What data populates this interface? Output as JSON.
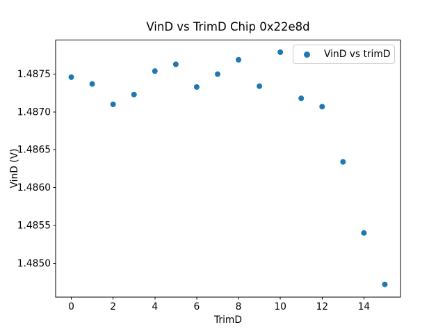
{
  "chart_data": {
    "type": "scatter",
    "title": "VinD vs TrimD Chip 0x22e8d",
    "xlabel": "TrimD",
    "ylabel": "VinD (V)",
    "legend": {
      "label": "VinD vs trimD",
      "position": "upper right"
    },
    "marker": {
      "shape": "circle",
      "color": "#1f77b4",
      "radius_px": 4
    },
    "x": [
      0,
      1,
      2,
      3,
      4,
      5,
      6,
      7,
      8,
      9,
      10,
      11,
      12,
      13,
      14,
      15
    ],
    "y": [
      1.48746,
      1.48737,
      1.4871,
      1.48723,
      1.48754,
      1.48763,
      1.48733,
      1.4875,
      1.48769,
      1.48734,
      1.48779,
      1.48718,
      1.48707,
      1.48634,
      1.4854,
      1.48472
    ],
    "xlim": [
      -0.75,
      15.75
    ],
    "ylim": [
      1.48455,
      1.48795
    ],
    "xticks": [
      0,
      2,
      4,
      6,
      8,
      10,
      12,
      14
    ],
    "xtick_labels": [
      "0",
      "2",
      "4",
      "6",
      "8",
      "10",
      "12",
      "14"
    ],
    "yticks": [
      1.485,
      1.4855,
      1.486,
      1.4865,
      1.487,
      1.4875
    ],
    "ytick_labels": [
      "1.4850",
      "1.4855",
      "1.4860",
      "1.4865",
      "1.4870",
      "1.4875"
    ],
    "grid": false,
    "axis_color": "#000000",
    "background_color": "#ffffff"
  }
}
